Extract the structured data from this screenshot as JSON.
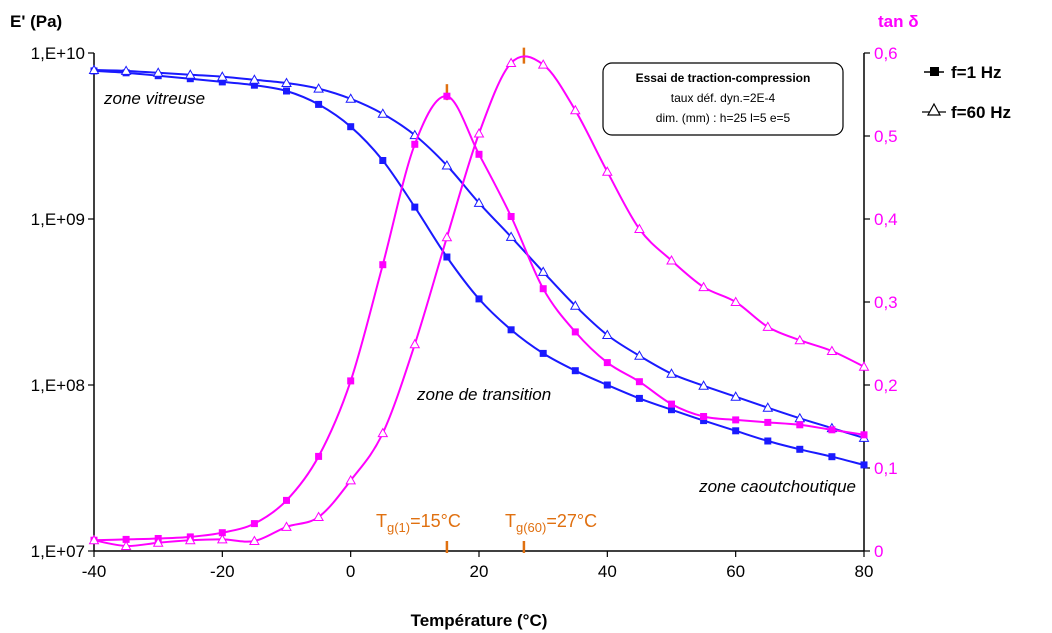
{
  "chart_data": {
    "type": "line",
    "title": "",
    "xlabel": "Température (°C)",
    "ylabel_left": "E' (Pa)",
    "ylabel_right": "tan δ",
    "xlim": [
      -40,
      80
    ],
    "xticks": [
      "-40",
      "-20",
      "0",
      "20",
      "40",
      "60",
      "80"
    ],
    "ylim_left": [
      10000000,
      10000000000
    ],
    "yscale_left": "log",
    "yticks_left": [
      "1,E+07",
      "1,E+08",
      "1,E+09",
      "1,E+10"
    ],
    "ylim_right": [
      0,
      0.6
    ],
    "yticks_right": [
      "0",
      "0,1",
      "0,2",
      "0,3",
      "0,4",
      "0,5",
      "0,6"
    ],
    "grid": false,
    "legend_position": "top-right",
    "legend": [
      {
        "label": "f=1 Hz",
        "marker": "filled-square"
      },
      {
        "label": "f=60 Hz",
        "marker": "open-triangle"
      }
    ],
    "x": [
      -40,
      -35,
      -30,
      -25,
      -20,
      -15,
      -10,
      -5,
      0,
      5,
      10,
      15,
      20,
      25,
      30,
      35,
      40,
      45,
      50,
      55,
      60,
      65,
      70,
      75,
      80
    ],
    "series": [
      {
        "name": "f=1 Hz",
        "axis": "left",
        "quantity": "E'",
        "color": "#1a1aff",
        "marker": "square",
        "values": [
          7800000000,
          7600000000,
          7300000000,
          7000000000,
          6700000000,
          6400000000,
          5900000000,
          4900000000,
          3600000000,
          2250000000,
          1180000000,
          590000000,
          330000000,
          215000000,
          155000000,
          122000000,
          100000000,
          83000000,
          71000000,
          61000000,
          53000000,
          46000000,
          41000000,
          37000000,
          33000000
        ]
      },
      {
        "name": "f=60 Hz",
        "axis": "left",
        "quantity": "E'",
        "color": "#1a1aff",
        "marker": "triangle",
        "values": [
          7900000000,
          7800000000,
          7600000000,
          7400000000,
          7200000000,
          6900000000,
          6600000000,
          6100000000,
          5300000000,
          4300000000,
          3200000000,
          2100000000,
          1250000000,
          780000000,
          480000000,
          300000000,
          200000000,
          150000000,
          117000000,
          99000000,
          85000000,
          73000000,
          63000000,
          55000000,
          48000000
        ]
      },
      {
        "name": "f=1 Hz",
        "axis": "right",
        "quantity": "tan δ",
        "color": "#ff00ff",
        "marker": "square",
        "values": [
          0.013,
          0.014,
          0.015,
          0.017,
          0.022,
          0.033,
          0.061,
          0.114,
          0.205,
          0.345,
          0.49,
          0.548,
          0.478,
          0.403,
          0.316,
          0.264,
          0.227,
          0.204,
          0.177,
          0.162,
          0.158,
          0.155,
          0.152,
          0.146,
          0.14
        ]
      },
      {
        "name": "f=60 Hz",
        "axis": "right",
        "quantity": "tan δ",
        "color": "#ff00ff",
        "marker": "triangle",
        "values": [
          0.013,
          0.006,
          0.01,
          0.013,
          0.014,
          0.012,
          0.029,
          0.041,
          0.085,
          0.142,
          0.249,
          0.378,
          0.503,
          0.588,
          0.586,
          0.531,
          0.457,
          0.388,
          0.35,
          0.318,
          0.3,
          0.27,
          0.254,
          0.241,
          0.222
        ]
      }
    ],
    "markers": [
      {
        "label": "Tg(1)=15°C",
        "main": "T",
        "sub": "g(1)",
        "rest": "=15°C",
        "x": 15,
        "peak": 0.548
      },
      {
        "label": "Tg(60)=27°C",
        "main": "T",
        "sub": "g(60)",
        "rest": "=27°C",
        "x": 27,
        "peak": 0.592
      }
    ],
    "annotations": [
      {
        "text": "zone vitreuse",
        "x": -39,
        "y": 6100000000
      },
      {
        "text": "zone de transition",
        "x": 13,
        "y": 73000000
      },
      {
        "text": "zone caoutchoutique",
        "x": 80,
        "y": 21000000
      }
    ],
    "info_box": {
      "title": "Essai de traction-compression",
      "line1": "taux déf. dyn.=2E-4",
      "line2": "dim. (mm) : h=25  l=5  e=5"
    }
  }
}
